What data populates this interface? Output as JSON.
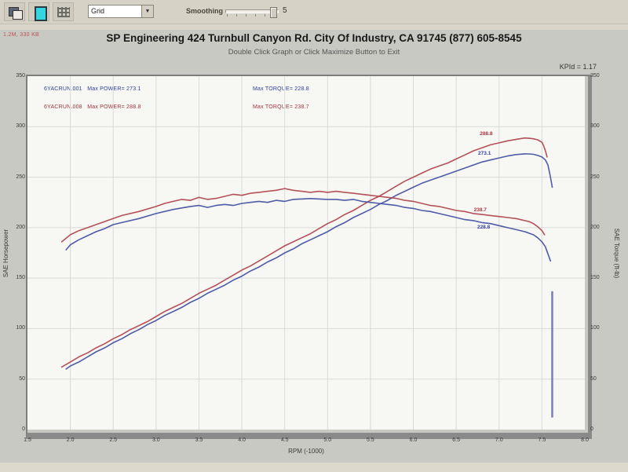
{
  "toolbar": {
    "dropdown_value": "Grid",
    "smoothing_label": "Smoothing",
    "smoothing_value": "5"
  },
  "header": {
    "watermark": "1.2M, 330 KB",
    "title": "SP Engineering 424 Turnbull Canyon Rd. City Of Industry, CA 91745 (877) 605-8545",
    "subtitle": "Double Click Graph or Click Maximize Button to Exit",
    "corner_note": "KPId = 1.17"
  },
  "legend": {
    "rows": [
      {
        "file": "6YACRUN.001",
        "power": "Max POWER= 273.1",
        "torque": "Max TORQUE= 228.8",
        "color": "#32409e"
      },
      {
        "file": "6YACRUN.008",
        "power": "Max POWER= 288.8",
        "torque": "Max TORQUE= 238.7",
        "color": "#a23640"
      }
    ]
  },
  "chart_data": {
    "type": "line",
    "title": "SP Engineering 424 Turnbull Canyon Rd. City Of Industry, CA 91745 (877) 605-8545",
    "xlabel": "RPM (-1000)",
    "ylabel_left": "SAE Horsepower",
    "ylabel_right": "SAE Torque (ft-lb)",
    "xlim": [
      1.5,
      8.0
    ],
    "ylim": [
      0,
      350
    ],
    "x_ticks": [
      "1.5",
      "2.0",
      "2.5",
      "3.0",
      "3.5",
      "4.0",
      "4.5",
      "5.0",
      "5.5",
      "6.0",
      "6.5",
      "7.0",
      "7.5",
      "8.0"
    ],
    "y_ticks": [
      0,
      50,
      100,
      150,
      200,
      250,
      300,
      350
    ],
    "grid": true,
    "legend_position": "top-inside",
    "series": [
      {
        "id": "power-run001",
        "name": "6YACRUN.001 Power (hp)",
        "color": "#4653a2",
        "max": 273.1,
        "points": [
          [
            1.95,
            60
          ],
          [
            2.0,
            63
          ],
          [
            2.1,
            67
          ],
          [
            2.2,
            72
          ],
          [
            2.3,
            77
          ],
          [
            2.4,
            81
          ],
          [
            2.5,
            86
          ],
          [
            2.6,
            90
          ],
          [
            2.7,
            95
          ],
          [
            2.8,
            99
          ],
          [
            2.9,
            104
          ],
          [
            3.0,
            108
          ],
          [
            3.1,
            113
          ],
          [
            3.2,
            117
          ],
          [
            3.3,
            121
          ],
          [
            3.4,
            126
          ],
          [
            3.5,
            130
          ],
          [
            3.6,
            135
          ],
          [
            3.7,
            139
          ],
          [
            3.8,
            143
          ],
          [
            3.9,
            148
          ],
          [
            4.0,
            152
          ],
          [
            4.1,
            157
          ],
          [
            4.2,
            161
          ],
          [
            4.3,
            166
          ],
          [
            4.4,
            170
          ],
          [
            4.5,
            175
          ],
          [
            4.6,
            179
          ],
          [
            4.7,
            184
          ],
          [
            4.8,
            188
          ],
          [
            4.9,
            192
          ],
          [
            5.0,
            196
          ],
          [
            5.1,
            201
          ],
          [
            5.2,
            205
          ],
          [
            5.3,
            210
          ],
          [
            5.4,
            214
          ],
          [
            5.5,
            218
          ],
          [
            5.6,
            223
          ],
          [
            5.7,
            227
          ],
          [
            5.8,
            232
          ],
          [
            5.9,
            236
          ],
          [
            6.0,
            240
          ],
          [
            6.1,
            244
          ],
          [
            6.2,
            247
          ],
          [
            6.3,
            250
          ],
          [
            6.4,
            253
          ],
          [
            6.5,
            256
          ],
          [
            6.6,
            259
          ],
          [
            6.7,
            262
          ],
          [
            6.8,
            265
          ],
          [
            6.9,
            267
          ],
          [
            7.0,
            269
          ],
          [
            7.1,
            271
          ],
          [
            7.2,
            272.4
          ],
          [
            7.3,
            273.1
          ],
          [
            7.35,
            273
          ],
          [
            7.4,
            272.6
          ],
          [
            7.45,
            271.5
          ],
          [
            7.5,
            270
          ],
          [
            7.54,
            267
          ],
          [
            7.57,
            262
          ],
          [
            7.59,
            254
          ],
          [
            7.61,
            245
          ],
          [
            7.62,
            240
          ]
        ]
      },
      {
        "id": "power-run008",
        "name": "6YACRUN.008 Power (hp)",
        "color": "#b04850",
        "max": 288.8,
        "points": [
          [
            1.9,
            62
          ],
          [
            2.0,
            67
          ],
          [
            2.1,
            72
          ],
          [
            2.2,
            76
          ],
          [
            2.3,
            81
          ],
          [
            2.4,
            85
          ],
          [
            2.5,
            90
          ],
          [
            2.6,
            94
          ],
          [
            2.7,
            99
          ],
          [
            2.8,
            103
          ],
          [
            2.9,
            107
          ],
          [
            3.0,
            112
          ],
          [
            3.1,
            117
          ],
          [
            3.2,
            121
          ],
          [
            3.3,
            125
          ],
          [
            3.4,
            130
          ],
          [
            3.5,
            135
          ],
          [
            3.6,
            139
          ],
          [
            3.7,
            143
          ],
          [
            3.8,
            148
          ],
          [
            3.9,
            153
          ],
          [
            4.0,
            158
          ],
          [
            4.1,
            162
          ],
          [
            4.2,
            167
          ],
          [
            4.3,
            172
          ],
          [
            4.4,
            177
          ],
          [
            4.5,
            182
          ],
          [
            4.6,
            186
          ],
          [
            4.7,
            190
          ],
          [
            4.8,
            194
          ],
          [
            4.9,
            199
          ],
          [
            5.0,
            204
          ],
          [
            5.1,
            208
          ],
          [
            5.2,
            213
          ],
          [
            5.3,
            217
          ],
          [
            5.4,
            222
          ],
          [
            5.5,
            227
          ],
          [
            5.6,
            231
          ],
          [
            5.7,
            236
          ],
          [
            5.8,
            241
          ],
          [
            5.9,
            246
          ],
          [
            6.0,
            250
          ],
          [
            6.1,
            254
          ],
          [
            6.2,
            258
          ],
          [
            6.3,
            261
          ],
          [
            6.4,
            264
          ],
          [
            6.5,
            268
          ],
          [
            6.6,
            272
          ],
          [
            6.7,
            276
          ],
          [
            6.8,
            279
          ],
          [
            6.9,
            282
          ],
          [
            7.0,
            284
          ],
          [
            7.1,
            286
          ],
          [
            7.2,
            287.5
          ],
          [
            7.3,
            288.8
          ],
          [
            7.35,
            288.5
          ],
          [
            7.4,
            288
          ],
          [
            7.45,
            287
          ],
          [
            7.5,
            284.5
          ],
          [
            7.52,
            281
          ],
          [
            7.54,
            276
          ],
          [
            7.56,
            270
          ]
        ]
      },
      {
        "id": "torque-run001",
        "name": "6YACRUN.001 Torque (ft-lb)",
        "color": "#4653a2",
        "max": 228.8,
        "points": [
          [
            1.95,
            178
          ],
          [
            2.0,
            183
          ],
          [
            2.1,
            188
          ],
          [
            2.2,
            192
          ],
          [
            2.3,
            196
          ],
          [
            2.4,
            199
          ],
          [
            2.5,
            203
          ],
          [
            2.6,
            205
          ],
          [
            2.8,
            209
          ],
          [
            3.0,
            214
          ],
          [
            3.2,
            218
          ],
          [
            3.4,
            221
          ],
          [
            3.5,
            222
          ],
          [
            3.6,
            220
          ],
          [
            3.7,
            222
          ],
          [
            3.8,
            223
          ],
          [
            3.9,
            222
          ],
          [
            4.0,
            224
          ],
          [
            4.1,
            225
          ],
          [
            4.2,
            226
          ],
          [
            4.3,
            225
          ],
          [
            4.4,
            227
          ],
          [
            4.5,
            226
          ],
          [
            4.6,
            228
          ],
          [
            4.8,
            228.8
          ],
          [
            5.0,
            228
          ],
          [
            5.1,
            228
          ],
          [
            5.2,
            227
          ],
          [
            5.3,
            228
          ],
          [
            5.4,
            226
          ],
          [
            5.5,
            225
          ],
          [
            5.6,
            224
          ],
          [
            5.7,
            223
          ],
          [
            5.8,
            222
          ],
          [
            5.9,
            220
          ],
          [
            6.0,
            219
          ],
          [
            6.1,
            217
          ],
          [
            6.2,
            216
          ],
          [
            6.3,
            214
          ],
          [
            6.4,
            212
          ],
          [
            6.5,
            210
          ],
          [
            6.6,
            208
          ],
          [
            6.7,
            207
          ],
          [
            6.8,
            205
          ],
          [
            6.9,
            204
          ],
          [
            7.0,
            202
          ],
          [
            7.1,
            200
          ],
          [
            7.2,
            198
          ],
          [
            7.3,
            196
          ],
          [
            7.4,
            193
          ],
          [
            7.45,
            190
          ],
          [
            7.5,
            186
          ],
          [
            7.54,
            181
          ],
          [
            7.57,
            174
          ],
          [
            7.6,
            167
          ]
        ]
      },
      {
        "id": "torque-run008",
        "name": "6YACRUN.008 Torque (ft-lb)",
        "color": "#b04850",
        "max": 238.7,
        "points": [
          [
            1.9,
            186
          ],
          [
            2.0,
            193
          ],
          [
            2.1,
            197
          ],
          [
            2.2,
            200
          ],
          [
            2.3,
            203
          ],
          [
            2.4,
            206
          ],
          [
            2.5,
            209
          ],
          [
            2.6,
            212
          ],
          [
            2.8,
            216
          ],
          [
            3.0,
            221
          ],
          [
            3.1,
            224
          ],
          [
            3.2,
            226
          ],
          [
            3.3,
            228
          ],
          [
            3.4,
            227
          ],
          [
            3.5,
            230
          ],
          [
            3.6,
            228
          ],
          [
            3.7,
            229
          ],
          [
            3.8,
            231
          ],
          [
            3.9,
            233
          ],
          [
            4.0,
            232
          ],
          [
            4.1,
            234
          ],
          [
            4.2,
            235
          ],
          [
            4.3,
            236
          ],
          [
            4.4,
            237
          ],
          [
            4.5,
            238.7
          ],
          [
            4.6,
            237
          ],
          [
            4.7,
            236
          ],
          [
            4.8,
            235
          ],
          [
            4.9,
            236
          ],
          [
            5.0,
            235
          ],
          [
            5.1,
            236
          ],
          [
            5.2,
            235
          ],
          [
            5.3,
            234
          ],
          [
            5.4,
            233
          ],
          [
            5.5,
            232
          ],
          [
            5.6,
            231
          ],
          [
            5.7,
            230
          ],
          [
            5.8,
            229
          ],
          [
            5.9,
            227
          ],
          [
            6.0,
            226
          ],
          [
            6.1,
            224
          ],
          [
            6.2,
            222
          ],
          [
            6.3,
            221
          ],
          [
            6.4,
            219
          ],
          [
            6.5,
            217
          ],
          [
            6.6,
            216
          ],
          [
            6.7,
            214
          ],
          [
            6.8,
            213
          ],
          [
            6.9,
            212
          ],
          [
            7.0,
            211
          ],
          [
            7.1,
            210
          ],
          [
            7.2,
            209
          ],
          [
            7.3,
            207
          ],
          [
            7.35,
            206
          ],
          [
            7.4,
            204
          ],
          [
            7.45,
            201
          ],
          [
            7.5,
            197
          ],
          [
            7.53,
            193
          ]
        ]
      }
    ],
    "end_tail": {
      "x": 7.62,
      "from": 137,
      "to": 12,
      "color": "#5a62a8"
    },
    "point_labels": [
      {
        "text": "288.8",
        "x": 6.85,
        "y": 292.5,
        "color": "#b0343c"
      },
      {
        "text": "273.1",
        "x": 6.83,
        "y": 273.0,
        "color": "#32409e"
      },
      {
        "text": "238.7",
        "x": 6.78,
        "y": 217.0,
        "color": "#b0343c"
      },
      {
        "text": "228.8",
        "x": 6.82,
        "y": 200.0,
        "color": "#32409e"
      }
    ]
  }
}
